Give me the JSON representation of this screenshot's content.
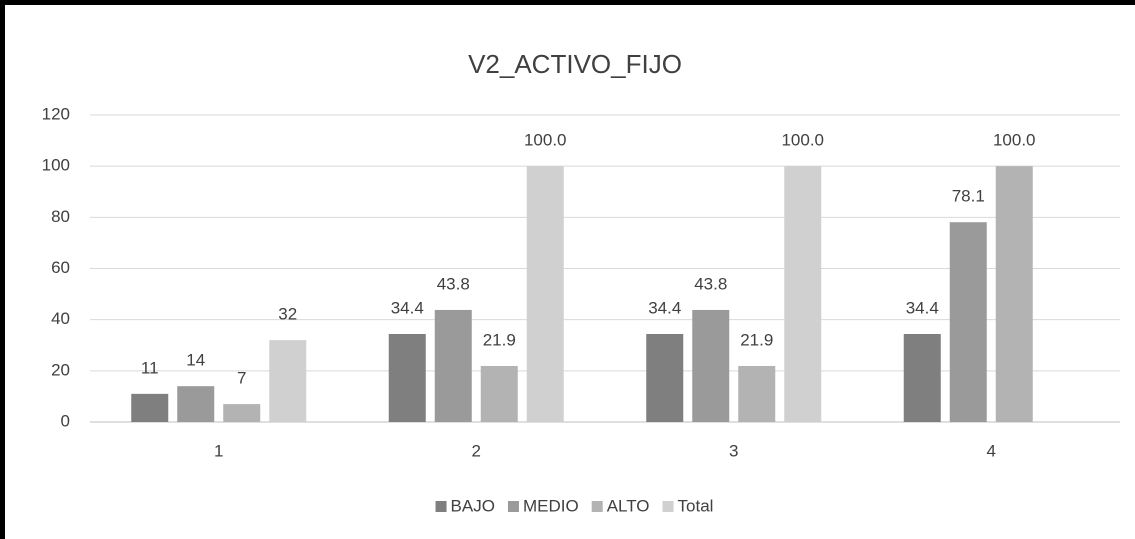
{
  "chart_data": {
    "type": "bar",
    "title": "V2_ACTIVO_FIJO",
    "categories": [
      "1",
      "2",
      "3",
      "4"
    ],
    "series": [
      {
        "name": "BAJO",
        "color": "#7f7f7f",
        "values": [
          11,
          34.4,
          34.4,
          34.4
        ],
        "value_labels": [
          "11",
          "34.4",
          "34.4",
          "34.4"
        ]
      },
      {
        "name": "MEDIO",
        "color": "#9a9a9a",
        "values": [
          14,
          43.8,
          43.8,
          78.1
        ],
        "value_labels": [
          "14",
          "43.8",
          "43.8",
          "78.1"
        ]
      },
      {
        "name": "ALTO",
        "color": "#b3b3b3",
        "values": [
          7,
          21.9,
          21.9,
          100
        ],
        "value_labels": [
          "7",
          "21.9",
          "21.9",
          "100.0"
        ]
      },
      {
        "name": "Total",
        "color": "#d0d0d0",
        "values": [
          32,
          100,
          100,
          null
        ],
        "value_labels": [
          "32",
          "100.0",
          "100.0",
          null
        ]
      }
    ],
    "ylim": [
      0,
      120
    ],
    "yticks": [
      0,
      20,
      40,
      60,
      80,
      100,
      120
    ],
    "grid": true,
    "legend": "bottom"
  }
}
